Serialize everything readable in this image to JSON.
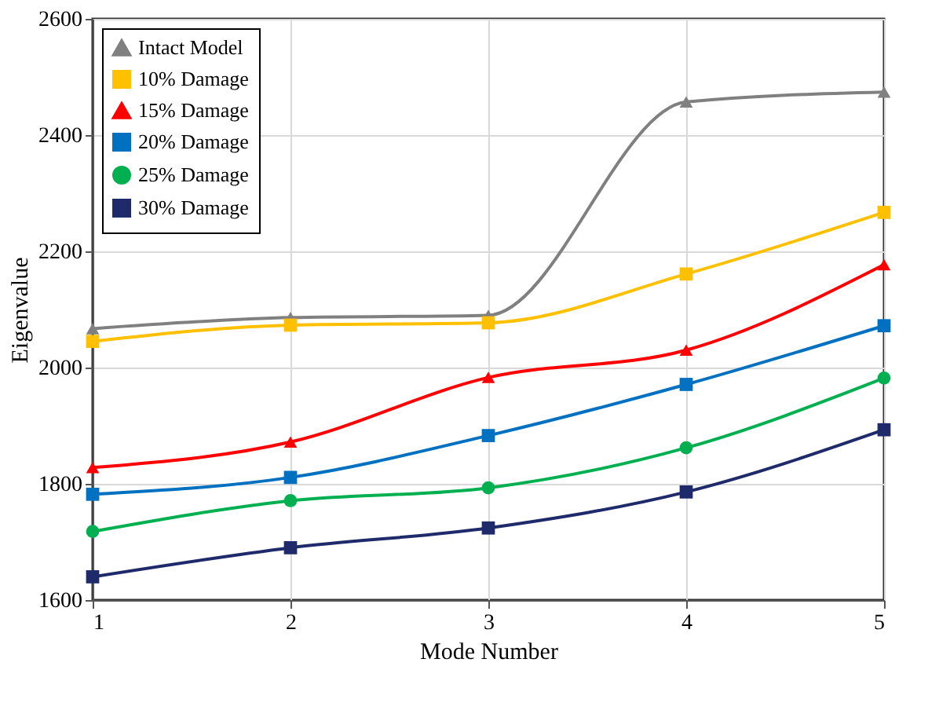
{
  "chart_data": {
    "type": "line",
    "xlabel": "Mode Number",
    "ylabel": "Eigenvalue",
    "x": [
      1,
      2,
      3,
      4,
      5
    ],
    "xlim": [
      1,
      5
    ],
    "xticks": [
      1,
      2,
      3,
      4,
      5
    ],
    "ylim": [
      1600,
      2600
    ],
    "yticks": [
      1600,
      1800,
      2000,
      2200,
      2400,
      2600
    ],
    "grid": true,
    "legend": "top left",
    "line_style": "solid",
    "series": [
      {
        "name": "Intact Model",
        "color": "#808080",
        "marker": "triangle",
        "values": [
          2067,
          2086,
          2090,
          2457,
          2474
        ]
      },
      {
        "name": "10% Damage",
        "color": "#ffc000",
        "marker": "square",
        "values": [
          2045,
          2073,
          2077,
          2161,
          2267
        ]
      },
      {
        "name": "15% Damage",
        "color": "#ff0000",
        "marker": "triangle",
        "values": [
          1828,
          1872,
          1983,
          2030,
          2177
        ]
      },
      {
        "name": "20% Damage",
        "color": "#0070c0",
        "marker": "square",
        "values": [
          1782,
          1811,
          1883,
          1971,
          2072
        ]
      },
      {
        "name": "25% Damage",
        "color": "#00b050",
        "marker": "circle",
        "values": [
          1718,
          1771,
          1793,
          1862,
          1982
        ]
      },
      {
        "name": "30% Damage",
        "color": "#1f2a6b",
        "marker": "square",
        "values": [
          1640,
          1690,
          1724,
          1786,
          1893
        ]
      }
    ]
  }
}
